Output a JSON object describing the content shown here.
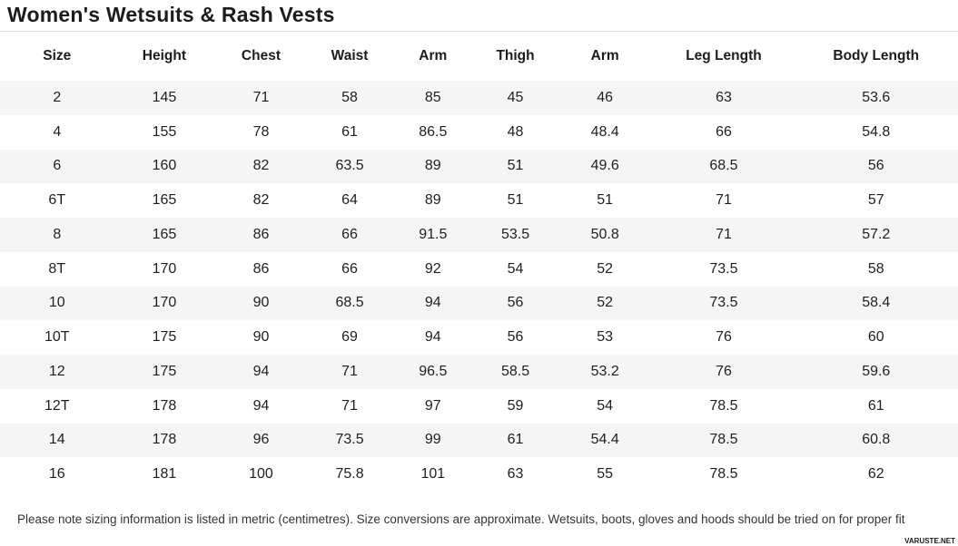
{
  "page": {
    "title": "Women's Wetsuits & Rash Vests",
    "footer_note": "Please note sizing information is listed in metric (centimetres). Size conversions are approximate. Wetsuits, boots, gloves and hoods should be tried on for proper fit",
    "watermark": "VARUSTE.NET"
  },
  "colors": {
    "row_stripe": "#f5f5f5",
    "divider": "#e0e0e0",
    "text": "#1c1c1e"
  },
  "chart_data": {
    "type": "table",
    "title": "Women's Wetsuits & Rash Vests",
    "columns": [
      "Size",
      "Height",
      "Chest",
      "Waist",
      "Arm",
      "Thigh",
      "Arm",
      "Leg Length",
      "Body Length"
    ],
    "rows": [
      [
        "2",
        "145",
        "71",
        "58",
        "85",
        "45",
        "46",
        "63",
        "53.6"
      ],
      [
        "4",
        "155",
        "78",
        "61",
        "86.5",
        "48",
        "48.4",
        "66",
        "54.8"
      ],
      [
        "6",
        "160",
        "82",
        "63.5",
        "89",
        "51",
        "49.6",
        "68.5",
        "56"
      ],
      [
        "6T",
        "165",
        "82",
        "64",
        "89",
        "51",
        "51",
        "71",
        "57"
      ],
      [
        "8",
        "165",
        "86",
        "66",
        "91.5",
        "53.5",
        "50.8",
        "71",
        "57.2"
      ],
      [
        "8T",
        "170",
        "86",
        "66",
        "92",
        "54",
        "52",
        "73.5",
        "58"
      ],
      [
        "10",
        "170",
        "90",
        "68.5",
        "94",
        "56",
        "52",
        "73.5",
        "58.4"
      ],
      [
        "10T",
        "175",
        "90",
        "69",
        "94",
        "56",
        "53",
        "76",
        "60"
      ],
      [
        "12",
        "175",
        "94",
        "71",
        "96.5",
        "58.5",
        "53.2",
        "76",
        "59.6"
      ],
      [
        "12T",
        "178",
        "94",
        "71",
        "97",
        "59",
        "54",
        "78.5",
        "61"
      ],
      [
        "14",
        "178",
        "96",
        "73.5",
        "99",
        "61",
        "54.4",
        "78.5",
        "60.8"
      ],
      [
        "16",
        "181",
        "100",
        "75.8",
        "101",
        "63",
        "55",
        "78.5",
        "62"
      ]
    ],
    "units": "centimetres"
  }
}
